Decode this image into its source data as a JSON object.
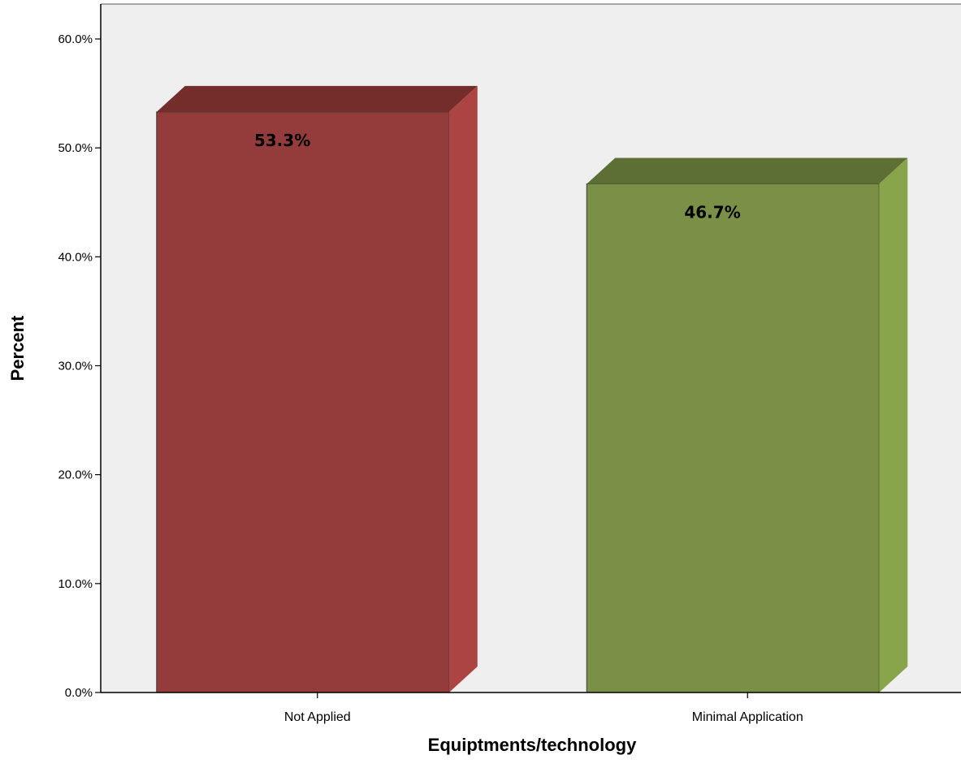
{
  "chart_data": {
    "type": "bar",
    "title": "",
    "xlabel": "Equiptments/technology",
    "ylabel": "Percent",
    "categories": [
      "Not Applied",
      "Minimal Application"
    ],
    "values": [
      53.3,
      46.7
    ],
    "data_labels": [
      "53.3%",
      "46.7%"
    ],
    "ylim": [
      0,
      60
    ],
    "yticks": [
      0,
      10,
      20,
      30,
      40,
      50,
      60
    ],
    "ytick_labels": [
      "0.0%",
      "10.0%",
      "20.0%",
      "30.0%",
      "40.0%",
      "50.0%",
      "60.0%"
    ],
    "grid": false,
    "legend": "none",
    "style": "3d-bar",
    "colors": {
      "plot_background": "#efefef",
      "bar_front": [
        "#933c3b",
        "#7a9046"
      ],
      "bar_top": [
        "#752d2c",
        "#5e6f36"
      ],
      "bar_side": [
        "#ab4443",
        "#89a54b"
      ]
    }
  }
}
